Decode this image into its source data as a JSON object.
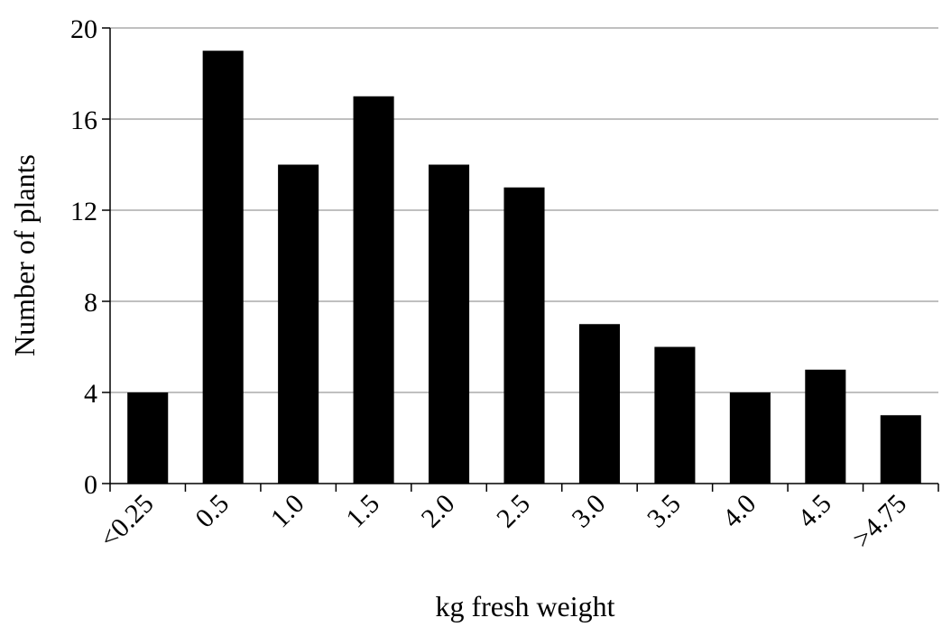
{
  "chart_data": {
    "type": "bar",
    "title": "",
    "xlabel": "kg fresh weight",
    "ylabel": "Number of plants",
    "categories": [
      "<0.25",
      "0.5",
      "1.0",
      "1.5",
      "2.0",
      "2.5",
      "3.0",
      "3.5",
      "4.0",
      "4.5",
      ">4.75"
    ],
    "values": [
      4,
      19,
      14,
      17,
      14,
      13,
      7,
      6,
      4,
      5,
      3
    ],
    "ylim": [
      0,
      20
    ],
    "yticks": [
      "0",
      "4",
      "8",
      "12",
      "16",
      "20"
    ],
    "grid": true,
    "bar_color": "#000000",
    "grid_color": "#808080",
    "legend": "none"
  }
}
